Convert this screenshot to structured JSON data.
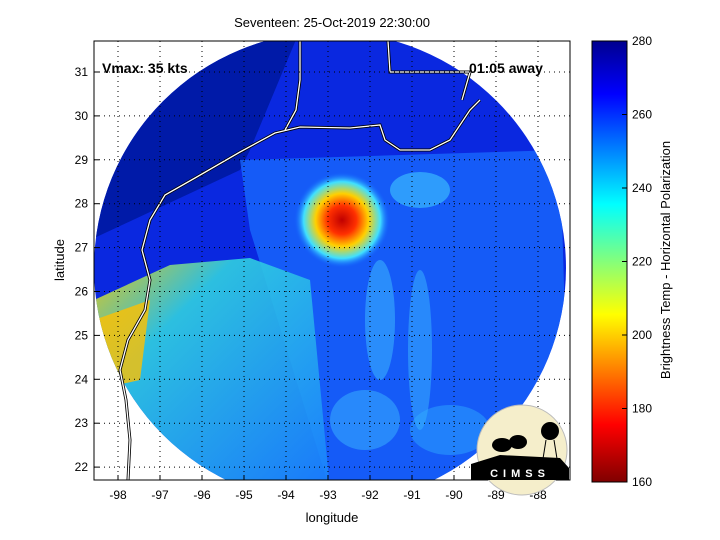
{
  "title": "Seventeen: 25-Oct-2019 22:30:00",
  "vmax_label": "Vmax: 35 kts",
  "time_away_label": "01:05 away",
  "xlabel": "longitude",
  "ylabel": "latitude",
  "colorbar": {
    "label": "Brightness Temp - Horizontal Polarization",
    "ticks": [
      "280",
      "260",
      "240",
      "220",
      "200",
      "180",
      "160"
    ],
    "range": [
      160,
      280
    ],
    "colormap": "jet (reversed)"
  },
  "x_ticks": [
    "-98",
    "-97",
    "-96",
    "-95",
    "-94",
    "-93",
    "-92",
    "-91",
    "-90",
    "-89",
    "-88"
  ],
  "y_ticks": [
    "31",
    "30",
    "29",
    "28",
    "27",
    "26",
    "25",
    "24",
    "23",
    "22"
  ],
  "logo": {
    "text": "CIMSS"
  },
  "colors": {
    "cold_core": "#e00000",
    "background_swath": "#0a1fd8",
    "coastline": "#ffffff"
  }
}
